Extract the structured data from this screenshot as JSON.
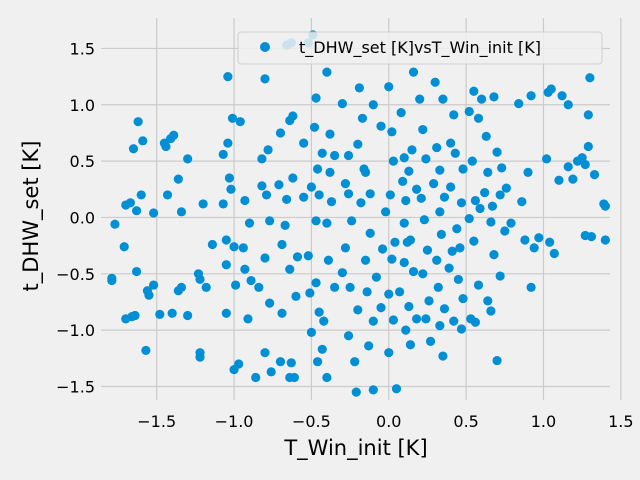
{
  "chart_data": {
    "type": "scatter",
    "title": "",
    "xlabel": "T_Win_init [K]",
    "ylabel": "t_DHW_set [K]",
    "xlim": [
      -1.86,
      1.43
    ],
    "ylim": [
      -1.62,
      1.77
    ],
    "xticks": [
      "−1.5",
      "−1.0",
      "−0.5",
      "0.0",
      "0.5",
      "1.0",
      "1.5"
    ],
    "yticks": [
      "1.5",
      "1.0",
      "0.5",
      "0.0",
      "−0.5",
      "−1.0",
      "−1.5"
    ],
    "xtick_values": [
      -1.5,
      -1.0,
      -0.5,
      0.0,
      0.5,
      1.0,
      1.5
    ],
    "ytick_values": [
      1.5,
      1.0,
      0.5,
      0.0,
      -0.5,
      -1.0,
      -1.5
    ],
    "grid": true,
    "legend_position": "top-right",
    "series": [
      {
        "name": "t_DHW_set [K]vsT_Win_init [K]",
        "color": "#008fd5",
        "points": [
          [
            -1.62,
            0.85
          ],
          [
            -1.65,
            0.61
          ],
          [
            -1.59,
            0.68
          ],
          [
            -1.7,
            0.11
          ],
          [
            -1.67,
            0.13
          ],
          [
            -1.63,
            0.06
          ],
          [
            -1.52,
            0.04
          ],
          [
            -1.77,
            -0.06
          ],
          [
            -1.71,
            -0.26
          ],
          [
            -1.63,
            -0.48
          ],
          [
            -1.79,
            -0.54
          ],
          [
            -1.79,
            -0.56
          ],
          [
            -1.56,
            -0.65
          ],
          [
            -1.7,
            -0.9
          ],
          [
            -1.66,
            -0.88
          ],
          [
            -1.64,
            -0.87
          ],
          [
            -1.57,
            -1.18
          ],
          [
            -1.6,
            0.2
          ],
          [
            -1.55,
            -0.69
          ],
          [
            -1.52,
            -0.6
          ],
          [
            -1.45,
            0.66
          ],
          [
            -1.41,
            0.7
          ],
          [
            -1.39,
            0.73
          ],
          [
            -1.44,
            0.63
          ],
          [
            -1.36,
            0.34
          ],
          [
            -1.43,
            0.2
          ],
          [
            -1.34,
            0.05
          ],
          [
            -1.36,
            -0.65
          ],
          [
            -1.4,
            -0.85
          ],
          [
            -1.48,
            -0.86
          ],
          [
            -1.34,
            -0.62
          ],
          [
            -1.3,
            -0.87
          ],
          [
            -1.23,
            -0.5
          ],
          [
            -1.22,
            -0.55
          ],
          [
            -1.22,
            -1.2
          ],
          [
            -1.22,
            -1.24
          ],
          [
            -1.2,
            0.12
          ],
          [
            -1.14,
            -0.24
          ],
          [
            -1.18,
            -0.62
          ],
          [
            -1.3,
            0.52
          ],
          [
            -1.04,
            1.25
          ],
          [
            -1.07,
            0.56
          ],
          [
            -1.04,
            0.66
          ],
          [
            -1.01,
            0.88
          ],
          [
            -1.03,
            0.35
          ],
          [
            -1.02,
            0.25
          ],
          [
            -1.07,
            0.12
          ],
          [
            -1.05,
            -0.2
          ],
          [
            -1.0,
            -0.26
          ],
          [
            -1.05,
            -0.42
          ],
          [
            -0.99,
            -0.6
          ],
          [
            -1.05,
            -0.85
          ],
          [
            -0.97,
            -1.3
          ],
          [
            -1.0,
            -1.35
          ],
          [
            -0.96,
            0.85
          ],
          [
            -0.93,
            0.15
          ],
          [
            -0.94,
            -0.27
          ],
          [
            -0.93,
            -0.46
          ],
          [
            -0.89,
            -0.56
          ],
          [
            -0.91,
            -0.9
          ],
          [
            -0.86,
            -1.42
          ],
          [
            -0.9,
            -0.05
          ],
          [
            -0.8,
            1.23
          ],
          [
            -0.82,
            0.52
          ],
          [
            -0.78,
            0.6
          ],
          [
            -0.82,
            0.28
          ],
          [
            -0.79,
            0.2
          ],
          [
            -0.77,
            -0.03
          ],
          [
            -0.8,
            -0.36
          ],
          [
            -0.84,
            -0.62
          ],
          [
            -0.77,
            -0.76
          ],
          [
            -0.8,
            -1.2
          ],
          [
            -0.76,
            -1.37
          ],
          [
            -0.7,
            -1.28
          ],
          [
            -0.66,
            1.53
          ],
          [
            -0.63,
            1.55
          ],
          [
            -0.62,
            0.9
          ],
          [
            -0.64,
            0.86
          ],
          [
            -0.7,
            0.75
          ],
          [
            -0.71,
            0.29
          ],
          [
            -0.66,
            0.16
          ],
          [
            -0.62,
            0.35
          ],
          [
            -0.67,
            -0.07
          ],
          [
            -0.69,
            -0.24
          ],
          [
            -0.64,
            -0.46
          ],
          [
            -0.6,
            -0.7
          ],
          [
            -0.69,
            -0.85
          ],
          [
            -0.63,
            -1.29
          ],
          [
            -0.61,
            -1.42
          ],
          [
            -0.64,
            -1.42
          ],
          [
            -0.59,
            -0.35
          ],
          [
            -0.52,
            1.55
          ],
          [
            -0.49,
            1.62
          ],
          [
            -0.47,
            1.06
          ],
          [
            -0.43,
            0.57
          ],
          [
            -0.48,
            0.8
          ],
          [
            -0.55,
            0.66
          ],
          [
            -0.46,
            0.43
          ],
          [
            -0.55,
            0.18
          ],
          [
            -0.5,
            0.27
          ],
          [
            -0.47,
            -0.03
          ],
          [
            -0.52,
            -0.34
          ],
          [
            -0.47,
            -0.58
          ],
          [
            -0.51,
            -0.67
          ],
          [
            -0.45,
            -0.84
          ],
          [
            -0.5,
            -1.02
          ],
          [
            -0.46,
            -1.28
          ],
          [
            -0.4,
            -1.42
          ],
          [
            -0.4,
            1.29
          ],
          [
            -0.38,
            0.74
          ],
          [
            -0.35,
            0.55
          ],
          [
            -0.38,
            0.4
          ],
          [
            -0.37,
            0.14
          ],
          [
            -0.4,
            -0.05
          ],
          [
            -0.39,
            -0.38
          ],
          [
            -0.35,
            -0.62
          ],
          [
            -0.42,
            -0.92
          ],
          [
            -0.43,
            -1.17
          ],
          [
            -0.45,
            0.2
          ],
          [
            -0.3,
            1.01
          ],
          [
            -0.26,
            0.55
          ],
          [
            -0.28,
            0.3
          ],
          [
            -0.26,
            0.21
          ],
          [
            -0.24,
            -0.03
          ],
          [
            -0.28,
            -0.27
          ],
          [
            -0.3,
            -0.49
          ],
          [
            -0.25,
            -0.62
          ],
          [
            -0.2,
            -0.82
          ],
          [
            -0.26,
            -1.05
          ],
          [
            -0.22,
            -1.28
          ],
          [
            -0.21,
            -1.55
          ],
          [
            -0.19,
            1.15
          ],
          [
            -0.17,
            0.88
          ],
          [
            -0.2,
            0.65
          ],
          [
            -0.16,
            0.43
          ],
          [
            -0.15,
            0.4
          ],
          [
            -0.18,
            0.13
          ],
          [
            -0.12,
            -0.14
          ],
          [
            -0.15,
            -0.38
          ],
          [
            -0.14,
            -0.66
          ],
          [
            -0.1,
            -0.92
          ],
          [
            -0.13,
            -1.14
          ],
          [
            -0.1,
            -1.53
          ],
          [
            -0.1,
            1.0
          ],
          [
            -0.12,
            0.21
          ],
          [
            -0.05,
            0.81
          ],
          [
            -0.04,
            -0.28
          ],
          [
            -0.05,
            -0.8
          ],
          [
            -0.08,
            -0.53
          ],
          [
            0.0,
            1.16
          ],
          [
            0.02,
            0.76
          ],
          [
            0.03,
            0.5
          ],
          [
            0.01,
            0.2
          ],
          [
            -0.02,
            0.05
          ],
          [
            0.04,
            -0.22
          ],
          [
            0.02,
            -0.37
          ],
          [
            0.0,
            -0.68
          ],
          [
            0.03,
            -0.91
          ],
          [
            0.0,
            -1.2
          ],
          [
            0.05,
            -1.52
          ],
          [
            0.08,
            0.93
          ],
          [
            0.1,
            0.53
          ],
          [
            0.09,
            0.32
          ],
          [
            0.11,
            0.15
          ],
          [
            0.1,
            -0.05
          ],
          [
            0.12,
            -0.22
          ],
          [
            0.1,
            -0.4
          ],
          [
            0.07,
            -0.66
          ],
          [
            0.13,
            -0.79
          ],
          [
            0.11,
            -1.0
          ],
          [
            0.14,
            -1.13
          ],
          [
            0.16,
            1.29
          ],
          [
            0.15,
            0.6
          ],
          [
            0.18,
            0.25
          ],
          [
            0.16,
            -0.48
          ],
          [
            0.18,
            -0.9
          ],
          [
            0.14,
            -0.2
          ],
          [
            0.13,
            0.41
          ],
          [
            0.2,
            1.05
          ],
          [
            0.22,
            0.78
          ],
          [
            0.24,
            0.52
          ],
          [
            0.21,
            0.17
          ],
          [
            0.23,
            -0.02
          ],
          [
            0.25,
            -0.29
          ],
          [
            0.22,
            -0.5
          ],
          [
            0.26,
            -0.74
          ],
          [
            0.24,
            -0.9
          ],
          [
            0.27,
            -1.1
          ],
          [
            0.3,
            1.2
          ],
          [
            0.31,
            0.62
          ],
          [
            0.33,
            0.42
          ],
          [
            0.29,
            0.3
          ],
          [
            0.33,
            0.05
          ],
          [
            0.34,
            -0.15
          ],
          [
            0.31,
            -0.38
          ],
          [
            0.32,
            -0.62
          ],
          [
            0.36,
            -0.81
          ],
          [
            0.33,
            -0.96
          ],
          [
            0.35,
            -1.23
          ],
          [
            0.35,
            1.05
          ],
          [
            0.36,
            0.18
          ],
          [
            0.39,
            -0.45
          ],
          [
            0.4,
            0.66
          ],
          [
            0.42,
            0.91
          ],
          [
            0.43,
            0.57
          ],
          [
            0.4,
            0.27
          ],
          [
            0.44,
            -0.1
          ],
          [
            0.41,
            -0.3
          ],
          [
            0.45,
            -0.55
          ],
          [
            0.42,
            -0.92
          ],
          [
            0.47,
            -0.99
          ],
          [
            0.48,
            0.43
          ],
          [
            0.47,
            0.13
          ],
          [
            0.48,
            -0.72
          ],
          [
            0.46,
            -0.27
          ],
          [
            0.55,
            1.12
          ],
          [
            0.52,
            0.94
          ],
          [
            0.58,
            0.88
          ],
          [
            0.54,
            0.5
          ],
          [
            0.56,
            0.15
          ],
          [
            0.59,
            0.08
          ],
          [
            0.52,
            -0.01
          ],
          [
            0.55,
            -0.21
          ],
          [
            0.58,
            -0.6
          ],
          [
            0.56,
            -0.93
          ],
          [
            0.53,
            -0.9
          ],
          [
            0.6,
            1.05
          ],
          [
            0.63,
            0.72
          ],
          [
            0.64,
            0.4
          ],
          [
            0.62,
            0.22
          ],
          [
            0.67,
            0.1
          ],
          [
            0.66,
            -0.04
          ],
          [
            0.68,
            -0.33
          ],
          [
            0.64,
            -0.74
          ],
          [
            0.66,
            -0.83
          ],
          [
            0.7,
            -1.27
          ],
          [
            0.68,
            1.07
          ],
          [
            0.7,
            0.58
          ],
          [
            0.73,
            0.44
          ],
          [
            0.72,
            0.2
          ],
          [
            0.75,
            -0.12
          ],
          [
            0.72,
            -0.52
          ],
          [
            0.76,
            0.26
          ],
          [
            0.79,
            -0.05
          ],
          [
            0.84,
            1.01
          ],
          [
            0.92,
            1.08
          ],
          [
            0.9,
            0.4
          ],
          [
            0.86,
            0.14
          ],
          [
            0.88,
            -0.2
          ],
          [
            0.94,
            -0.27
          ],
          [
            0.92,
            -0.62
          ],
          [
            0.97,
            -0.18
          ],
          [
            1.03,
            1.11
          ],
          [
            1.05,
            1.14
          ],
          [
            1.02,
            0.52
          ],
          [
            1.04,
            -0.22
          ],
          [
            1.12,
            1.08
          ],
          [
            1.16,
            1.0
          ],
          [
            1.1,
            0.33
          ],
          [
            1.16,
            0.45
          ],
          [
            1.19,
            0.34
          ],
          [
            1.22,
            0.5
          ],
          [
            1.27,
            0.47
          ],
          [
            1.25,
            0.53
          ],
          [
            1.29,
            0.63
          ],
          [
            1.3,
            1.24
          ],
          [
            1.29,
            0.91
          ],
          [
            1.33,
            0.38
          ],
          [
            1.31,
            -0.17
          ],
          [
            1.39,
            0.12
          ],
          [
            1.4,
            0.1
          ],
          [
            1.4,
            -0.2
          ],
          [
            1.27,
            -0.16
          ],
          [
            1.07,
            -0.32
          ]
        ]
      }
    ]
  }
}
